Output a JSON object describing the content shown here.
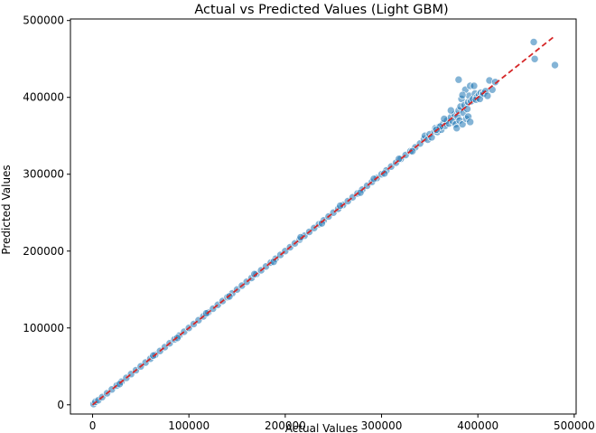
{
  "chart_data": {
    "type": "scatter",
    "title": "Actual vs Predicted Values (Light GBM)",
    "xlabel": "Actual Values",
    "ylabel": "Predicted Values",
    "xlim": [
      -23000,
      502000
    ],
    "ylim": [
      -12000,
      502000
    ],
    "xticks": [
      0,
      100000,
      200000,
      300000,
      400000,
      500000
    ],
    "yticks": [
      0,
      100000,
      200000,
      300000,
      400000,
      500000
    ],
    "grid": false,
    "legend": "none",
    "colors": {
      "points": "#1f77b4",
      "reference_line": "#d62728"
    },
    "reference_line": {
      "style": "dashed",
      "from": [
        0,
        0
      ],
      "to": [
        480000,
        480000
      ]
    },
    "series": [
      {
        "marker": "circle",
        "points": [
          [
            1000,
            1000
          ],
          [
            3000,
            4000
          ],
          [
            6000,
            6000
          ],
          [
            10000,
            10000
          ],
          [
            15000,
            15000
          ],
          [
            20000,
            20000
          ],
          [
            25000,
            25000
          ],
          [
            30000,
            30000
          ],
          [
            35000,
            35000
          ],
          [
            40000,
            40000
          ],
          [
            45000,
            45000
          ],
          [
            50000,
            50000
          ],
          [
            55000,
            55000
          ],
          [
            60000,
            60000
          ],
          [
            65000,
            65000
          ],
          [
            70000,
            70000
          ],
          [
            75000,
            75000
          ],
          [
            80000,
            80000
          ],
          [
            85000,
            85000
          ],
          [
            90000,
            90000
          ],
          [
            95000,
            95000
          ],
          [
            100000,
            100000
          ],
          [
            105000,
            105000
          ],
          [
            110000,
            110000
          ],
          [
            115000,
            115000
          ],
          [
            120000,
            120000
          ],
          [
            125000,
            125000
          ],
          [
            130000,
            130000
          ],
          [
            135000,
            135000
          ],
          [
            140000,
            140000
          ],
          [
            145000,
            145000
          ],
          [
            150000,
            150000
          ],
          [
            155000,
            155000
          ],
          [
            160000,
            160000
          ],
          [
            165000,
            165000
          ],
          [
            170000,
            170000
          ],
          [
            175000,
            175000
          ],
          [
            180000,
            180000
          ],
          [
            185000,
            185000
          ],
          [
            190000,
            190000
          ],
          [
            195000,
            195000
          ],
          [
            200000,
            200000
          ],
          [
            205000,
            205000
          ],
          [
            210000,
            210000
          ],
          [
            215000,
            215000
          ],
          [
            220000,
            220000
          ],
          [
            225000,
            225000
          ],
          [
            230000,
            230000
          ],
          [
            235000,
            235000
          ],
          [
            240000,
            240000
          ],
          [
            245000,
            245000
          ],
          [
            250000,
            250000
          ],
          [
            255000,
            255000
          ],
          [
            260000,
            260000
          ],
          [
            265000,
            265000
          ],
          [
            270000,
            270000
          ],
          [
            275000,
            275000
          ],
          [
            280000,
            280000
          ],
          [
            285000,
            285000
          ],
          [
            290000,
            290000
          ],
          [
            295000,
            295000
          ],
          [
            300000,
            300000
          ],
          [
            305000,
            305000
          ],
          [
            310000,
            310000
          ],
          [
            315000,
            315000
          ],
          [
            320000,
            320000
          ],
          [
            325000,
            325000
          ],
          [
            330000,
            330000
          ],
          [
            335000,
            335000
          ],
          [
            340000,
            340000
          ],
          [
            28000,
            27000
          ],
          [
            63000,
            64000
          ],
          [
            88000,
            87000
          ],
          [
            118000,
            119000
          ],
          [
            142000,
            141000
          ],
          [
            168000,
            170000
          ],
          [
            188000,
            186000
          ],
          [
            216000,
            218000
          ],
          [
            238000,
            236000
          ],
          [
            257000,
            259000
          ],
          [
            278000,
            276000
          ],
          [
            292000,
            294000
          ],
          [
            303000,
            301000
          ],
          [
            318000,
            320000
          ],
          [
            332000,
            330000
          ],
          [
            344000,
            346000
          ],
          [
            345000,
            350000
          ],
          [
            348000,
            345000
          ],
          [
            350000,
            352000
          ],
          [
            352000,
            348000
          ],
          [
            355000,
            356000
          ],
          [
            356000,
            360000
          ],
          [
            358000,
            355000
          ],
          [
            360000,
            362000
          ],
          [
            362000,
            358000
          ],
          [
            364000,
            366000
          ],
          [
            366000,
            363000
          ],
          [
            368000,
            370000
          ],
          [
            370000,
            366000
          ],
          [
            372000,
            374000
          ],
          [
            374000,
            369000
          ],
          [
            376000,
            378000
          ],
          [
            377000,
            365000
          ],
          [
            378000,
            360000
          ],
          [
            379000,
            375000
          ],
          [
            380000,
            383000
          ],
          [
            381000,
            370000
          ],
          [
            382000,
            388000
          ],
          [
            383000,
            398000
          ],
          [
            384000,
            365000
          ],
          [
            385000,
            380000
          ],
          [
            386000,
            390000
          ],
          [
            387000,
            410000
          ],
          [
            388000,
            372000
          ],
          [
            389000,
            385000
          ],
          [
            390000,
            394000
          ],
          [
            391000,
            402000
          ],
          [
            392000,
            415000
          ],
          [
            393000,
            395000
          ],
          [
            395000,
            398000
          ],
          [
            397000,
            405000
          ],
          [
            399000,
            400000
          ],
          [
            401000,
            403000
          ],
          [
            403000,
            406000
          ],
          [
            405000,
            404000
          ],
          [
            380000,
            423000
          ],
          [
            384000,
            403000
          ],
          [
            390000,
            375000
          ],
          [
            392000,
            368000
          ],
          [
            396000,
            415000
          ],
          [
            398000,
            397000
          ],
          [
            402000,
            398000
          ],
          [
            406000,
            405000
          ],
          [
            408000,
            408000
          ],
          [
            410000,
            402000
          ],
          [
            412000,
            422000
          ],
          [
            415000,
            410000
          ],
          [
            418000,
            420000
          ],
          [
            458000,
            472000
          ],
          [
            459000,
            450000
          ],
          [
            480000,
            442000
          ],
          [
            372000,
            383000
          ],
          [
            365000,
            372000
          ],
          [
            361000,
            362000
          ],
          [
            357000,
            358000
          ]
        ]
      }
    ]
  }
}
